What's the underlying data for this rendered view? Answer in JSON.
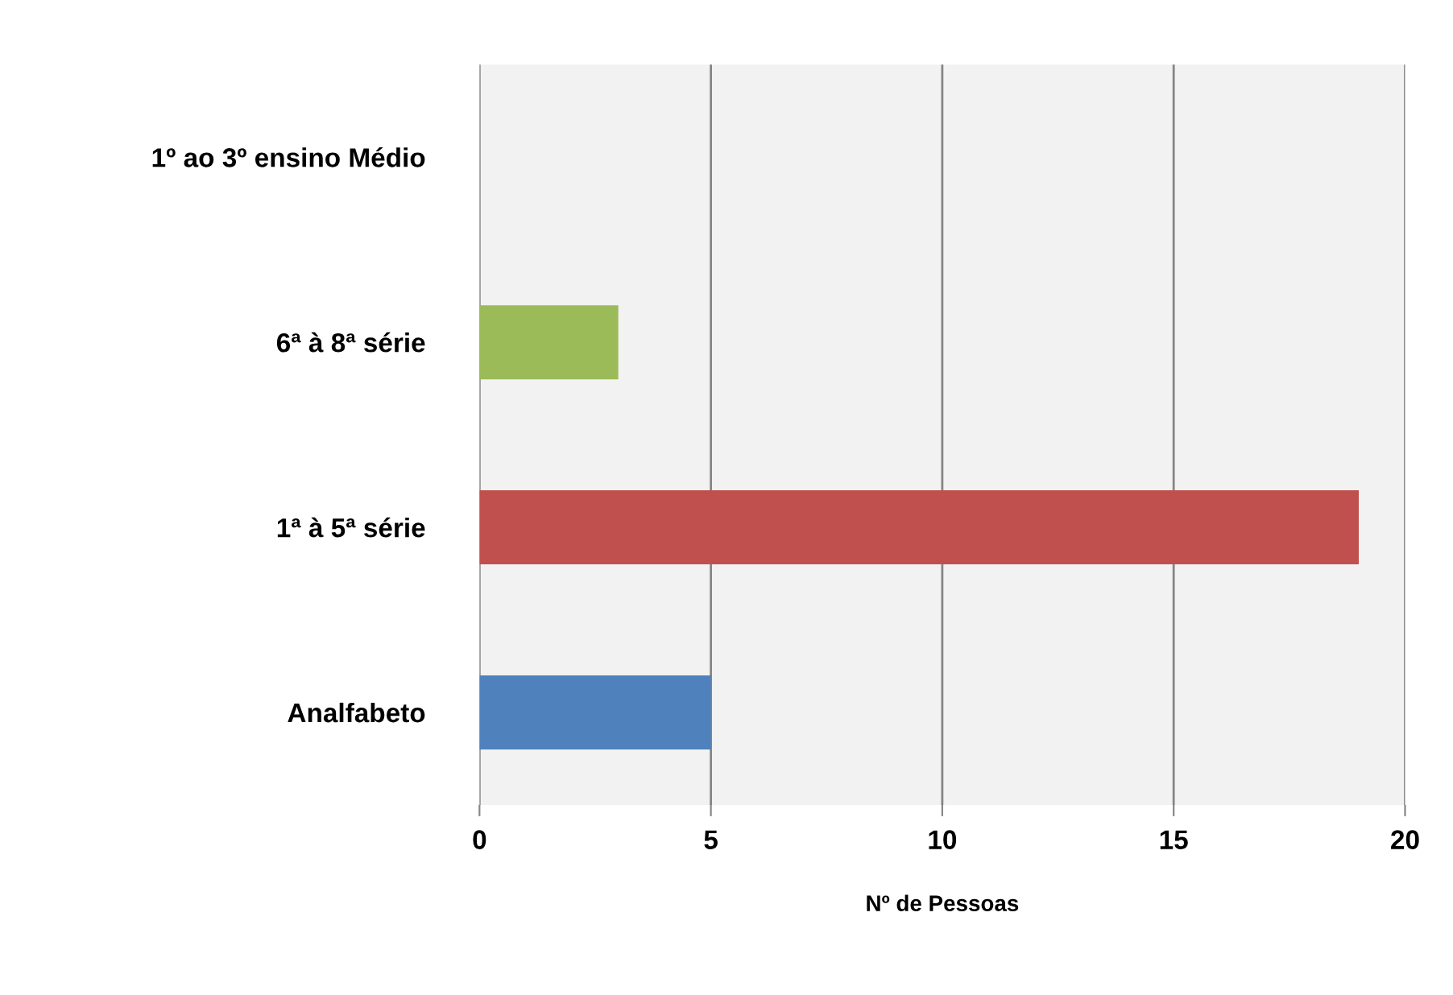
{
  "chart_data": {
    "type": "bar",
    "orientation": "horizontal",
    "categories": [
      "1º ao 3º ensino Médio",
      "6ª à 8ª série",
      "1ª à 5ª série",
      "Analfabeto"
    ],
    "values": [
      0,
      3,
      19,
      5
    ],
    "colors": [
      "#4f81bd",
      "#9bbb59",
      "#c0504d",
      "#4f81bd"
    ],
    "xlabel": "Nº de Pessoas",
    "xlim": [
      0,
      20
    ],
    "xticks": [
      0,
      5,
      10,
      15,
      20
    ],
    "grid": "x"
  }
}
